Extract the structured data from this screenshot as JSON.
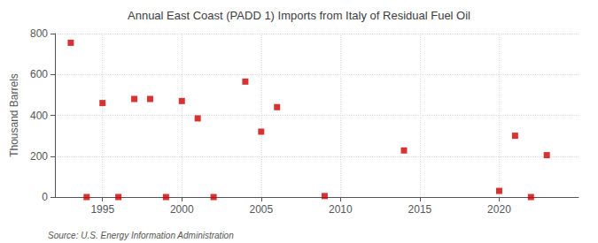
{
  "chart_data": {
    "type": "scatter",
    "title": "Annual East Coast (PADD 1) Imports from Italy of Residual Fuel Oil",
    "ylabel": "Thousand Barrels",
    "annotation": "Source: U.S. Energy Information Administration",
    "x": [
      1993,
      1994,
      1995,
      1996,
      1997,
      1998,
      1999,
      2000,
      2001,
      2002,
      2004,
      2005,
      2006,
      2009,
      2014,
      2020,
      2021,
      2022,
      2023
    ],
    "values": [
      755,
      0,
      460,
      0,
      480,
      480,
      0,
      470,
      385,
      0,
      565,
      320,
      440,
      5,
      228,
      30,
      300,
      0,
      205
    ],
    "color": "#cc0000",
    "marker": "square",
    "xlim": [
      1992,
      2025
    ],
    "xticks": [
      1995,
      2000,
      2005,
      2010,
      2015,
      2020
    ],
    "ylim": [
      0,
      800
    ],
    "yticks": [
      0,
      200,
      400,
      600,
      800
    ],
    "grid": true
  }
}
